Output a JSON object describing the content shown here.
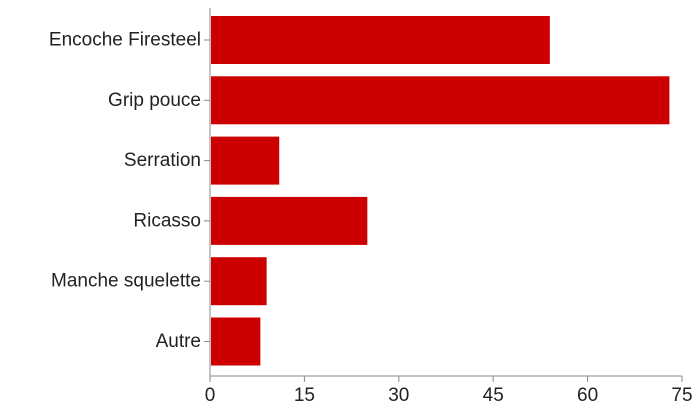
{
  "chart_data": {
    "type": "bar",
    "orientation": "horizontal",
    "categories": [
      "Encoche Firesteel",
      "Grip pouce",
      "Serration",
      "Ricasso",
      "Manche squelette",
      "Autre"
    ],
    "values": [
      54,
      73,
      11,
      25,
      9,
      8
    ],
    "xlim": [
      0,
      75
    ],
    "x_ticks": [
      "0",
      "15",
      "30",
      "45",
      "60",
      "75"
    ],
    "title": "",
    "xlabel": "",
    "ylabel": "",
    "grid": false,
    "bar_color": "#cc0000"
  }
}
